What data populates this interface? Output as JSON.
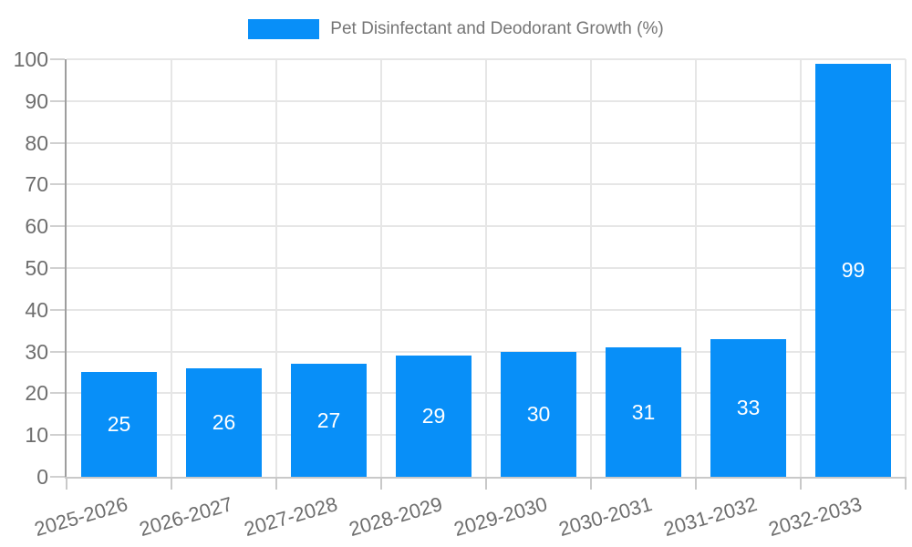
{
  "legend": {
    "label": "Pet Disinfectant and Deodorant Growth (%)"
  },
  "chart_data": {
    "type": "bar",
    "title": "Pet Disinfectant and Deodorant Growth (%)",
    "categories": [
      "2025-2026",
      "2026-2027",
      "2027-2028",
      "2028-2029",
      "2029-2030",
      "2030-2031",
      "2031-2032",
      "2032-2033"
    ],
    "values": [
      25,
      26,
      27,
      29,
      30,
      31,
      33,
      99
    ],
    "bar_value_labels": [
      "25",
      "26",
      "27",
      "29",
      "30",
      "31",
      "33",
      "99"
    ],
    "xlabel": "",
    "ylabel": "",
    "ylim": [
      0,
      100
    ],
    "ytick_step": 10,
    "yticks": [
      0,
      10,
      20,
      30,
      40,
      50,
      60,
      70,
      80,
      90,
      100
    ],
    "grid": true,
    "legend_position": "top-center",
    "x_label_rotation_deg": -16,
    "colors": {
      "bar": "#088ff8",
      "bar_label": "#ffffff",
      "grid": "#e6e6e6",
      "y_axis_line": "#9e9e9e",
      "x_axis_line": "#c9c9c9",
      "axis_text": "#6e6e6e",
      "legend_text": "#757575"
    }
  }
}
